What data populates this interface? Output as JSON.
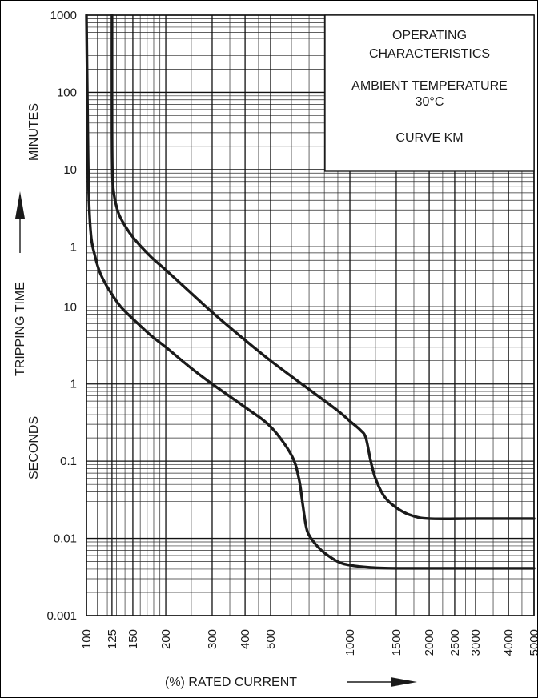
{
  "chart_data": {
    "type": "line",
    "xscale": "log",
    "yscale": "log",
    "xlim": [
      100,
      5000
    ],
    "ylim_seconds": [
      0.001,
      60000
    ],
    "x_ticks": [
      "100",
      "125",
      "150",
      "200",
      "300",
      "400",
      "500",
      "1000",
      "1500",
      "2000",
      "2500",
      "3000",
      "4000",
      "5000"
    ],
    "y_ticks_seconds": [
      "0.001",
      "0.01",
      "0.1",
      "1",
      "10"
    ],
    "y_ticks_minutes": [
      "1",
      "10",
      "100",
      "1000"
    ],
    "xlabel": "(%)  RATED CURRENT",
    "ylabel_top": "MINUTES",
    "ylabel_mid": "TRIPPING TIME",
    "ylabel_bottom": "SECONDS",
    "grid": true,
    "legend": {
      "lines": [
        "OPERATING",
        "CHARACTERISTICS",
        "AMBIENT TEMPERATURE",
        "30°C",
        "CURVE KM"
      ],
      "placement": "top-right"
    },
    "series": [
      {
        "x": [
          100,
          101,
          102,
          104,
          107,
          112,
          118,
          125,
          135,
          150,
          175,
          200,
          250,
          300,
          400,
          500,
          600,
          640,
          660,
          680,
          700,
          750,
          800,
          900,
          1000,
          1200,
          1500,
          2000,
          3000,
          5000
        ],
        "y": [
          60000,
          3000,
          300,
          85,
          50,
          29,
          20,
          14.5,
          10,
          7,
          4.3,
          3,
          1.6,
          1,
          0.5,
          0.28,
          0.12,
          0.06,
          0.03,
          0.015,
          0.011,
          0.008,
          0.0065,
          0.005,
          0.0045,
          0.0042,
          0.0041,
          0.0041,
          0.0041,
          0.0041
        ]
      },
      {
        "x": [
          125,
          125,
          125.5,
          127,
          130,
          135,
          150,
          175,
          200,
          250,
          300,
          400,
          500,
          700,
          900,
          1000,
          1100,
          1150,
          1200,
          1250,
          1350,
          1500,
          1700,
          2000,
          3000,
          5000
        ],
        "y": [
          60000,
          2000,
          500,
          300,
          200,
          140,
          80,
          45,
          30,
          15,
          8.5,
          3.7,
          2,
          0.85,
          0.45,
          0.33,
          0.25,
          0.2,
          0.1,
          0.06,
          0.035,
          0.025,
          0.02,
          0.018,
          0.018,
          0.018
        ]
      }
    ]
  }
}
